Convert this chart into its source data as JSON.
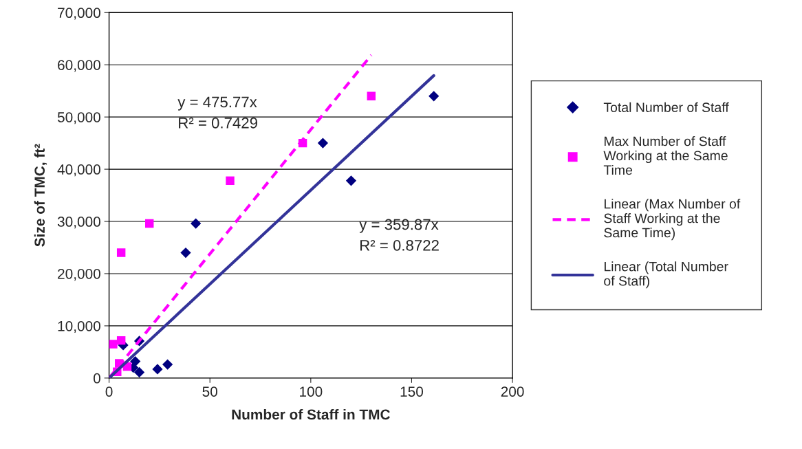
{
  "chart_data": {
    "type": "scatter",
    "xlabel": "Number of Staff in TMC",
    "ylabel": "Size of TMC, ft²",
    "xlim": [
      0,
      200
    ],
    "xticks": [
      0,
      50,
      100,
      150,
      200
    ],
    "ylim": [
      0,
      70000
    ],
    "yticks": [
      {
        "value": 0,
        "label": "0"
      },
      {
        "value": 10000,
        "label": "10,000"
      },
      {
        "value": 20000,
        "label": "20,000"
      },
      {
        "value": 30000,
        "label": "30,000"
      },
      {
        "value": 40000,
        "label": "40,000"
      },
      {
        "value": 50000,
        "label": "50,000"
      },
      {
        "value": 60000,
        "label": "60,000"
      },
      {
        "value": 70000,
        "label": "70,000"
      }
    ],
    "grid": "y",
    "legend": "right",
    "series": [
      {
        "name": "Total Number of Staff",
        "marker": "diamond",
        "color": "#000080",
        "x": [
          161,
          120,
          106,
          43,
          38,
          15,
          7,
          13,
          15,
          24,
          29,
          12
        ],
        "values": [
          54000,
          37800,
          45000,
          29600,
          24000,
          7100,
          6300,
          3200,
          1100,
          1700,
          2600,
          2000
        ]
      },
      {
        "name": "Max Number of Staff Working at the Same Time",
        "marker": "square",
        "color": "#ff00ff",
        "x": [
          130,
          96,
          60,
          20,
          6,
          6,
          2,
          5,
          4,
          9
        ],
        "values": [
          54000,
          45000,
          37800,
          29600,
          24000,
          7200,
          6500,
          2800,
          1200,
          2200
        ]
      },
      {
        "name": "Linear (Max Number of Staff Working at the Same Time)",
        "type": "line",
        "line_style": "dashed",
        "color": "#ff00ff",
        "x": [
          0,
          130
        ],
        "values": [
          0,
          61850
        ]
      },
      {
        "name": "Linear (Total Number of Staff)",
        "type": "line",
        "line_style": "solid",
        "color": "#333399",
        "x": [
          0,
          161
        ],
        "values": [
          0,
          57940
        ]
      }
    ],
    "annotations": [
      "y = 475.77x\nR² = 0.7429",
      "y = 359.87x\nR² = 0.8722"
    ]
  }
}
